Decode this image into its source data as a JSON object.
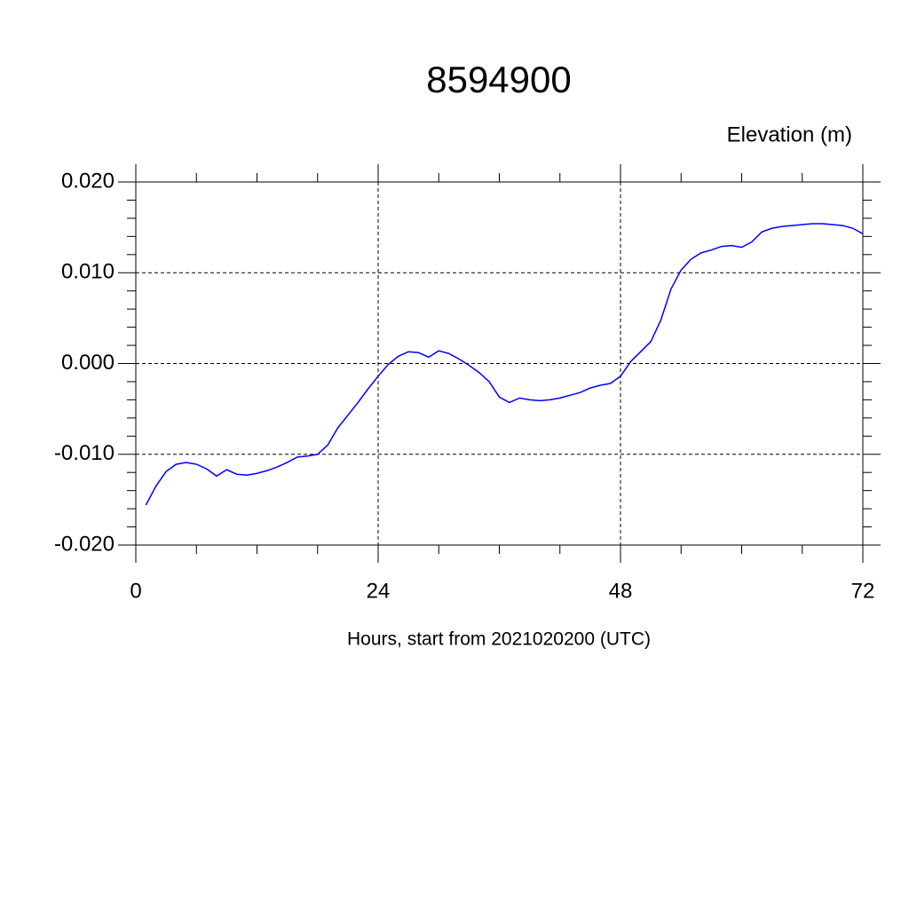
{
  "chart_data": {
    "type": "line",
    "title": "8594900",
    "ylabel": "Elevation (m)",
    "xlabel": "Hours, start from 2021020200 (UTC)",
    "x": [
      1,
      2,
      3,
      4,
      5,
      6,
      7,
      8,
      9,
      10,
      11,
      12,
      13,
      14,
      15,
      16,
      17,
      18,
      19,
      20,
      21,
      22,
      23,
      24,
      25,
      26,
      27,
      28,
      29,
      30,
      31,
      32,
      33,
      34,
      35,
      36,
      37,
      38,
      39,
      40,
      41,
      42,
      43,
      44,
      45,
      46,
      47,
      48,
      49,
      50,
      51,
      52,
      53,
      54,
      55,
      56,
      57,
      58,
      59,
      60,
      61,
      62,
      63,
      64,
      65,
      66,
      67,
      68,
      69,
      70,
      71,
      72
    ],
    "series": [
      {
        "color": "#0000ff",
        "values": [
          -0.0156,
          -0.0135,
          -0.0119,
          -0.0111,
          -0.0109,
          -0.0111,
          -0.0116,
          -0.0124,
          -0.0117,
          -0.0122,
          -0.0123,
          -0.0121,
          -0.0118,
          -0.0114,
          -0.0109,
          -0.0103,
          -0.0102,
          -0.01,
          -0.009,
          -0.0071,
          -0.0057,
          -0.0043,
          -0.0028,
          -0.0014,
          -0.0001,
          0.0008,
          0.0013,
          0.0012,
          0.0007,
          0.0014,
          0.0011,
          0.0005,
          -0.0002,
          -0.001,
          -0.002,
          -0.0037,
          -0.0043,
          -0.0038,
          -0.004,
          -0.0041,
          -0.004,
          -0.0038,
          -0.0035,
          -0.0032,
          -0.0027,
          -0.0024,
          -0.0022,
          -0.0014,
          0.0002,
          0.0013,
          0.0024,
          0.0048,
          0.0082,
          0.0103,
          0.0115,
          0.0122,
          0.0125,
          0.0129,
          0.013,
          0.0128,
          0.0134,
          0.0145,
          0.0149,
          0.0151,
          0.0152,
          0.0153,
          0.0154,
          0.0154,
          0.0153,
          0.0152,
          0.0149,
          0.0143
        ]
      }
    ],
    "xlim": [
      0,
      72
    ],
    "xticks": [
      0,
      24,
      48,
      72
    ],
    "ylim": [
      -0.02,
      0.02
    ],
    "yticks": [
      {
        "value": -0.02,
        "label": "-0.020"
      },
      {
        "value": -0.01,
        "label": "-0.010"
      },
      {
        "value": 0,
        "label": "0.000"
      },
      {
        "value": 0.01,
        "label": "0.010"
      },
      {
        "value": 0.02,
        "label": "0.020"
      }
    ],
    "grid": true
  }
}
